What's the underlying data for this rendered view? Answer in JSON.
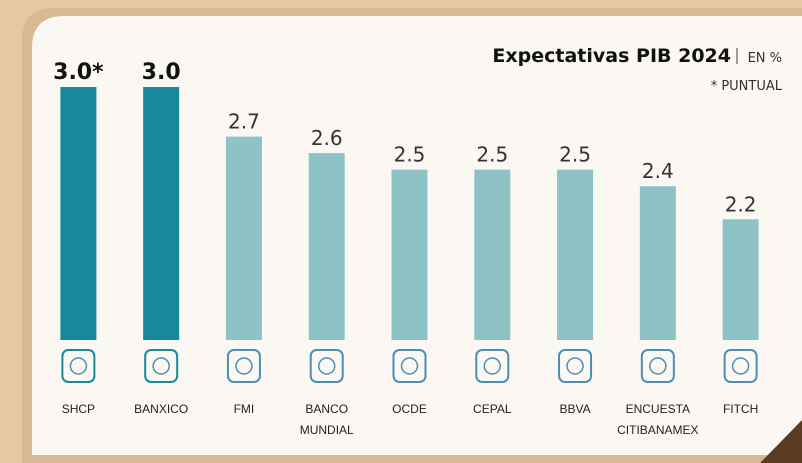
{
  "chart_data": {
    "type": "bar",
    "title": "Expectativas PIB 2024",
    "unit": "EN %",
    "note": "* PUNTUAL",
    "categories": [
      "SHCP",
      "BANXICO",
      "FMI",
      "BANCO MUNDIAL",
      "OCDE",
      "CEPAL",
      "BBVA",
      "ENCUESTA CITIBANAMEX",
      "FITCH"
    ],
    "values": [
      3.0,
      3.0,
      2.7,
      2.6,
      2.5,
      2.5,
      2.5,
      2.4,
      2.2
    ],
    "value_labels": [
      "3.0*",
      "3.0",
      "2.7",
      "2.6",
      "2.5",
      "2.5",
      "2.5",
      "2.4",
      "2.2"
    ],
    "colors": [
      "#17899a",
      "#17899a",
      "#8ec3c5",
      "#8ec3c5",
      "#8ec3c5",
      "#8ec3c5",
      "#8ec3c5",
      "#8ec3c5",
      "#8ec3c5"
    ],
    "ylim": [
      1.47,
      3.0
    ]
  }
}
